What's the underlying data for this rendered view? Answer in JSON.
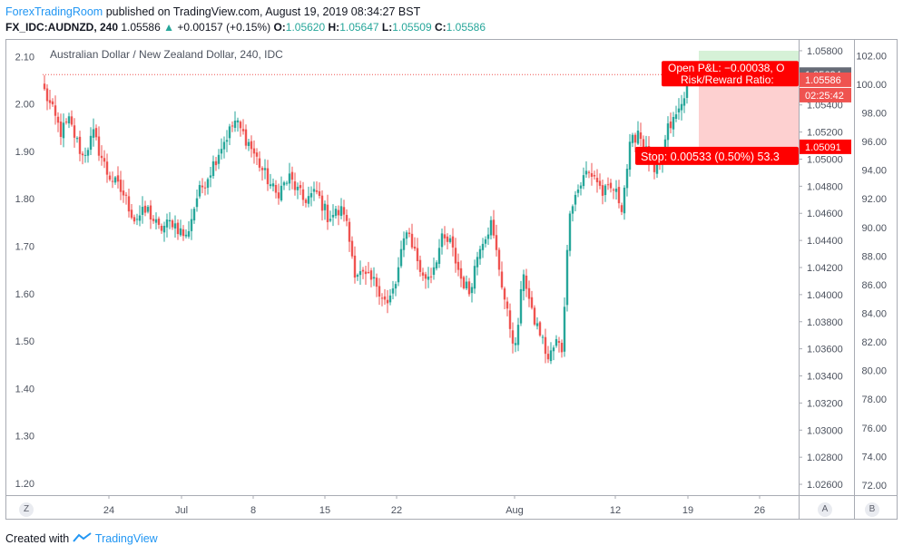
{
  "header": {
    "brand": "ForexTradingRoom",
    "published": "published on TradingView.com, August 19, 2019 08:34:27 BST",
    "symbol": "FX_IDC:AUDNZD, 240",
    "last": "1.05586",
    "change": "+0.00157 (+0.15%)",
    "o_label": "O:",
    "o_value": "1.05620",
    "h_label": "H:",
    "h_value": "1.05647",
    "l_label": "L:",
    "l_value": "1.05509",
    "c_label": "C:",
    "c_value": "1.05586"
  },
  "chart_title": "Australian Dollar / New Zealand Dollar, 240, IDC",
  "footer": {
    "created_with": "Created with",
    "brand": "TradingView"
  },
  "buttons": {
    "left": "Z",
    "auto": "A",
    "log": "B"
  },
  "position_tool": {
    "open_pnl": "Open P&L: −0.00038, O",
    "risk_reward": "Risk/Reward Ratio:",
    "stop": "Stop: 0.00533 (0.50%) 53.3"
  },
  "colors": {
    "up": "#26a69a",
    "down": "#ef5350",
    "target_zone": "#d6f1d7",
    "stop_zone": "#fdd0d0",
    "stop_label": "#ff0000",
    "brand": "#2196f3"
  },
  "chart_data": {
    "type": "candlestick",
    "left_axis": {
      "ticks": [
        2.1,
        2.0,
        1.9,
        1.8,
        1.7,
        1.6,
        1.5,
        1.4,
        1.3,
        1.2
      ],
      "range": [
        1.175,
        2.135
      ]
    },
    "price_axis": {
      "ticks": [
        "1.05800",
        "1.05600",
        "1.05400",
        "1.05200",
        "1.05000",
        "1.04800",
        "1.04600",
        "1.04400",
        "1.04200",
        "1.04000",
        "1.03800",
        "1.03600",
        "1.03400",
        "1.03200",
        "1.03000",
        "1.02800",
        "1.02600"
      ],
      "range": [
        1.0252,
        1.0588
      ]
    },
    "right_axis": {
      "ticks": [
        102.0,
        100.0,
        98.0,
        96.0,
        94.0,
        92.0,
        90.0,
        88.0,
        86.0,
        84.0,
        82.0,
        80.0,
        78.0,
        76.0,
        74.0,
        72.0
      ],
      "range": [
        71.3,
        103.1
      ]
    },
    "x_axis": {
      "ticks": [
        "24",
        "Jul",
        "8",
        "15",
        "22",
        "Aug",
        "12",
        "19",
        "26"
      ]
    },
    "price_labels": [
      {
        "text": "1.05624",
        "kind": "entry"
      },
      {
        "text": "1.05586",
        "kind": "last"
      },
      {
        "text": "02:25:42",
        "kind": "countdown"
      },
      {
        "text": "1.05091",
        "kind": "stop"
      }
    ],
    "entry_price": 1.05624,
    "stop_price": 1.05091,
    "target_price": 1.058,
    "waypoints": [
      [
        0,
        1.055
      ],
      [
        6,
        1.052
      ],
      [
        9,
        1.0528
      ],
      [
        14,
        1.0502
      ],
      [
        18,
        1.0518
      ],
      [
        23,
        1.049
      ],
      [
        29,
        1.0474
      ],
      [
        33,
        1.0456
      ],
      [
        38,
        1.0462
      ],
      [
        42,
        1.0448
      ],
      [
        47,
        1.0454
      ],
      [
        52,
        1.0442
      ],
      [
        56,
        1.0472
      ],
      [
        61,
        1.0492
      ],
      [
        65,
        1.051
      ],
      [
        70,
        1.0528
      ],
      [
        75,
        1.0512
      ],
      [
        80,
        1.0492
      ],
      [
        85,
        1.0474
      ],
      [
        90,
        1.0486
      ],
      [
        95,
        1.047
      ],
      [
        100,
        1.0475
      ],
      [
        104,
        1.0458
      ],
      [
        110,
        1.0462
      ],
      [
        114,
        1.0418
      ],
      [
        118,
        1.0412
      ],
      [
        122,
        1.0408
      ],
      [
        126,
        1.0392
      ],
      [
        129,
        1.0408
      ],
      [
        133,
        1.045
      ],
      [
        136,
        1.0432
      ],
      [
        139,
        1.0412
      ],
      [
        142,
        1.0416
      ],
      [
        146,
        1.044
      ],
      [
        149,
        1.0438
      ],
      [
        153,
        1.0412
      ],
      [
        156,
        1.0402
      ],
      [
        160,
        1.0438
      ],
      [
        164,
        1.0452
      ],
      [
        167,
        1.042
      ],
      [
        170,
        1.0385
      ],
      [
        173,
        1.036
      ],
      [
        176,
        1.0418
      ],
      [
        179,
        1.0385
      ],
      [
        182,
        1.0372
      ],
      [
        185,
        1.0352
      ],
      [
        188,
        1.0365
      ],
      [
        190,
        1.036
      ],
      [
        193,
        1.0465
      ],
      [
        196,
        1.0478
      ],
      [
        199,
        1.049
      ],
      [
        202,
        1.0488
      ],
      [
        205,
        1.0475
      ],
      [
        209,
        1.0478
      ],
      [
        212,
        1.0466
      ],
      [
        215,
        1.0508
      ],
      [
        218,
        1.0522
      ],
      [
        221,
        1.0505
      ],
      [
        224,
        1.0488
      ],
      [
        226,
        1.0494
      ],
      [
        229,
        1.0522
      ],
      [
        231,
        1.0528
      ],
      [
        234,
        1.054
      ],
      [
        236,
        1.0559
      ]
    ]
  }
}
